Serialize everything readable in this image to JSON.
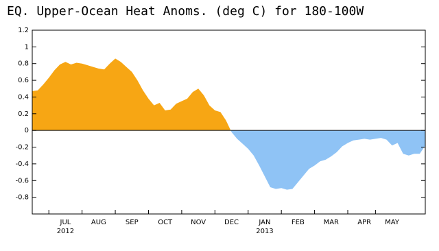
{
  "chart_data": {
    "type": "area",
    "title": "EQ. Upper-Ocean Heat Anoms. (deg C) for 180-100W",
    "categories": [
      null,
      null,
      null,
      null,
      null,
      null,
      "JUL",
      null,
      null,
      null,
      null,
      null,
      "AUG",
      null,
      null,
      null,
      null,
      null,
      "SEP",
      null,
      null,
      null,
      null,
      null,
      "OCT",
      null,
      null,
      null,
      null,
      null,
      "NOV",
      null,
      null,
      null,
      null,
      null,
      "DEC",
      null,
      null,
      null,
      null,
      null,
      "JAN",
      null,
      null,
      null,
      null,
      null,
      "FEB",
      null,
      null,
      null,
      null,
      null,
      "MAR",
      null,
      null,
      null,
      null,
      null,
      "APR",
      null,
      null,
      null,
      null,
      "MAY",
      null,
      null,
      null,
      null,
      null,
      null
    ],
    "category_years": [
      null,
      null,
      null,
      null,
      null,
      null,
      "2012",
      null,
      null,
      null,
      null,
      null,
      null,
      null,
      null,
      null,
      null,
      null,
      null,
      null,
      null,
      null,
      null,
      null,
      null,
      null,
      null,
      null,
      null,
      null,
      null,
      null,
      null,
      null,
      null,
      null,
      null,
      null,
      null,
      null,
      null,
      null,
      "2013",
      null,
      null,
      null,
      null,
      null,
      null,
      null,
      null,
      null,
      null,
      null,
      null,
      null,
      null,
      null,
      null,
      null,
      null,
      null,
      null,
      null,
      null,
      null,
      null,
      null,
      null,
      null,
      null,
      null
    ],
    "values": [
      0.47,
      0.48,
      0.55,
      0.63,
      0.72,
      0.79,
      0.82,
      0.79,
      0.81,
      0.8,
      0.78,
      0.76,
      0.74,
      0.73,
      0.8,
      0.86,
      0.82,
      0.76,
      0.7,
      0.6,
      0.48,
      0.38,
      0.3,
      0.33,
      0.24,
      0.25,
      0.32,
      0.35,
      0.38,
      0.46,
      0.5,
      0.42,
      0.3,
      0.24,
      0.22,
      0.12,
      -0.02,
      -0.1,
      -0.16,
      -0.22,
      -0.3,
      -0.42,
      -0.55,
      -0.68,
      -0.7,
      -0.69,
      -0.71,
      -0.7,
      -0.62,
      -0.54,
      -0.46,
      -0.42,
      -0.37,
      -0.35,
      -0.31,
      -0.26,
      -0.19,
      -0.15,
      -0.12,
      -0.11,
      -0.1,
      -0.11,
      -0.1,
      -0.09,
      -0.11,
      -0.18,
      -0.15,
      -0.28,
      -0.3,
      -0.28,
      -0.28,
      -0.18
    ],
    "positive_color": "#f7a614",
    "negative_color": "#8fc3f5",
    "ylim": [
      -1,
      1.2
    ],
    "yticks": [
      1.2,
      1,
      0.8,
      0.6,
      0.4,
      0.2,
      0,
      -0.2,
      -0.4,
      -0.6,
      -0.8
    ]
  }
}
